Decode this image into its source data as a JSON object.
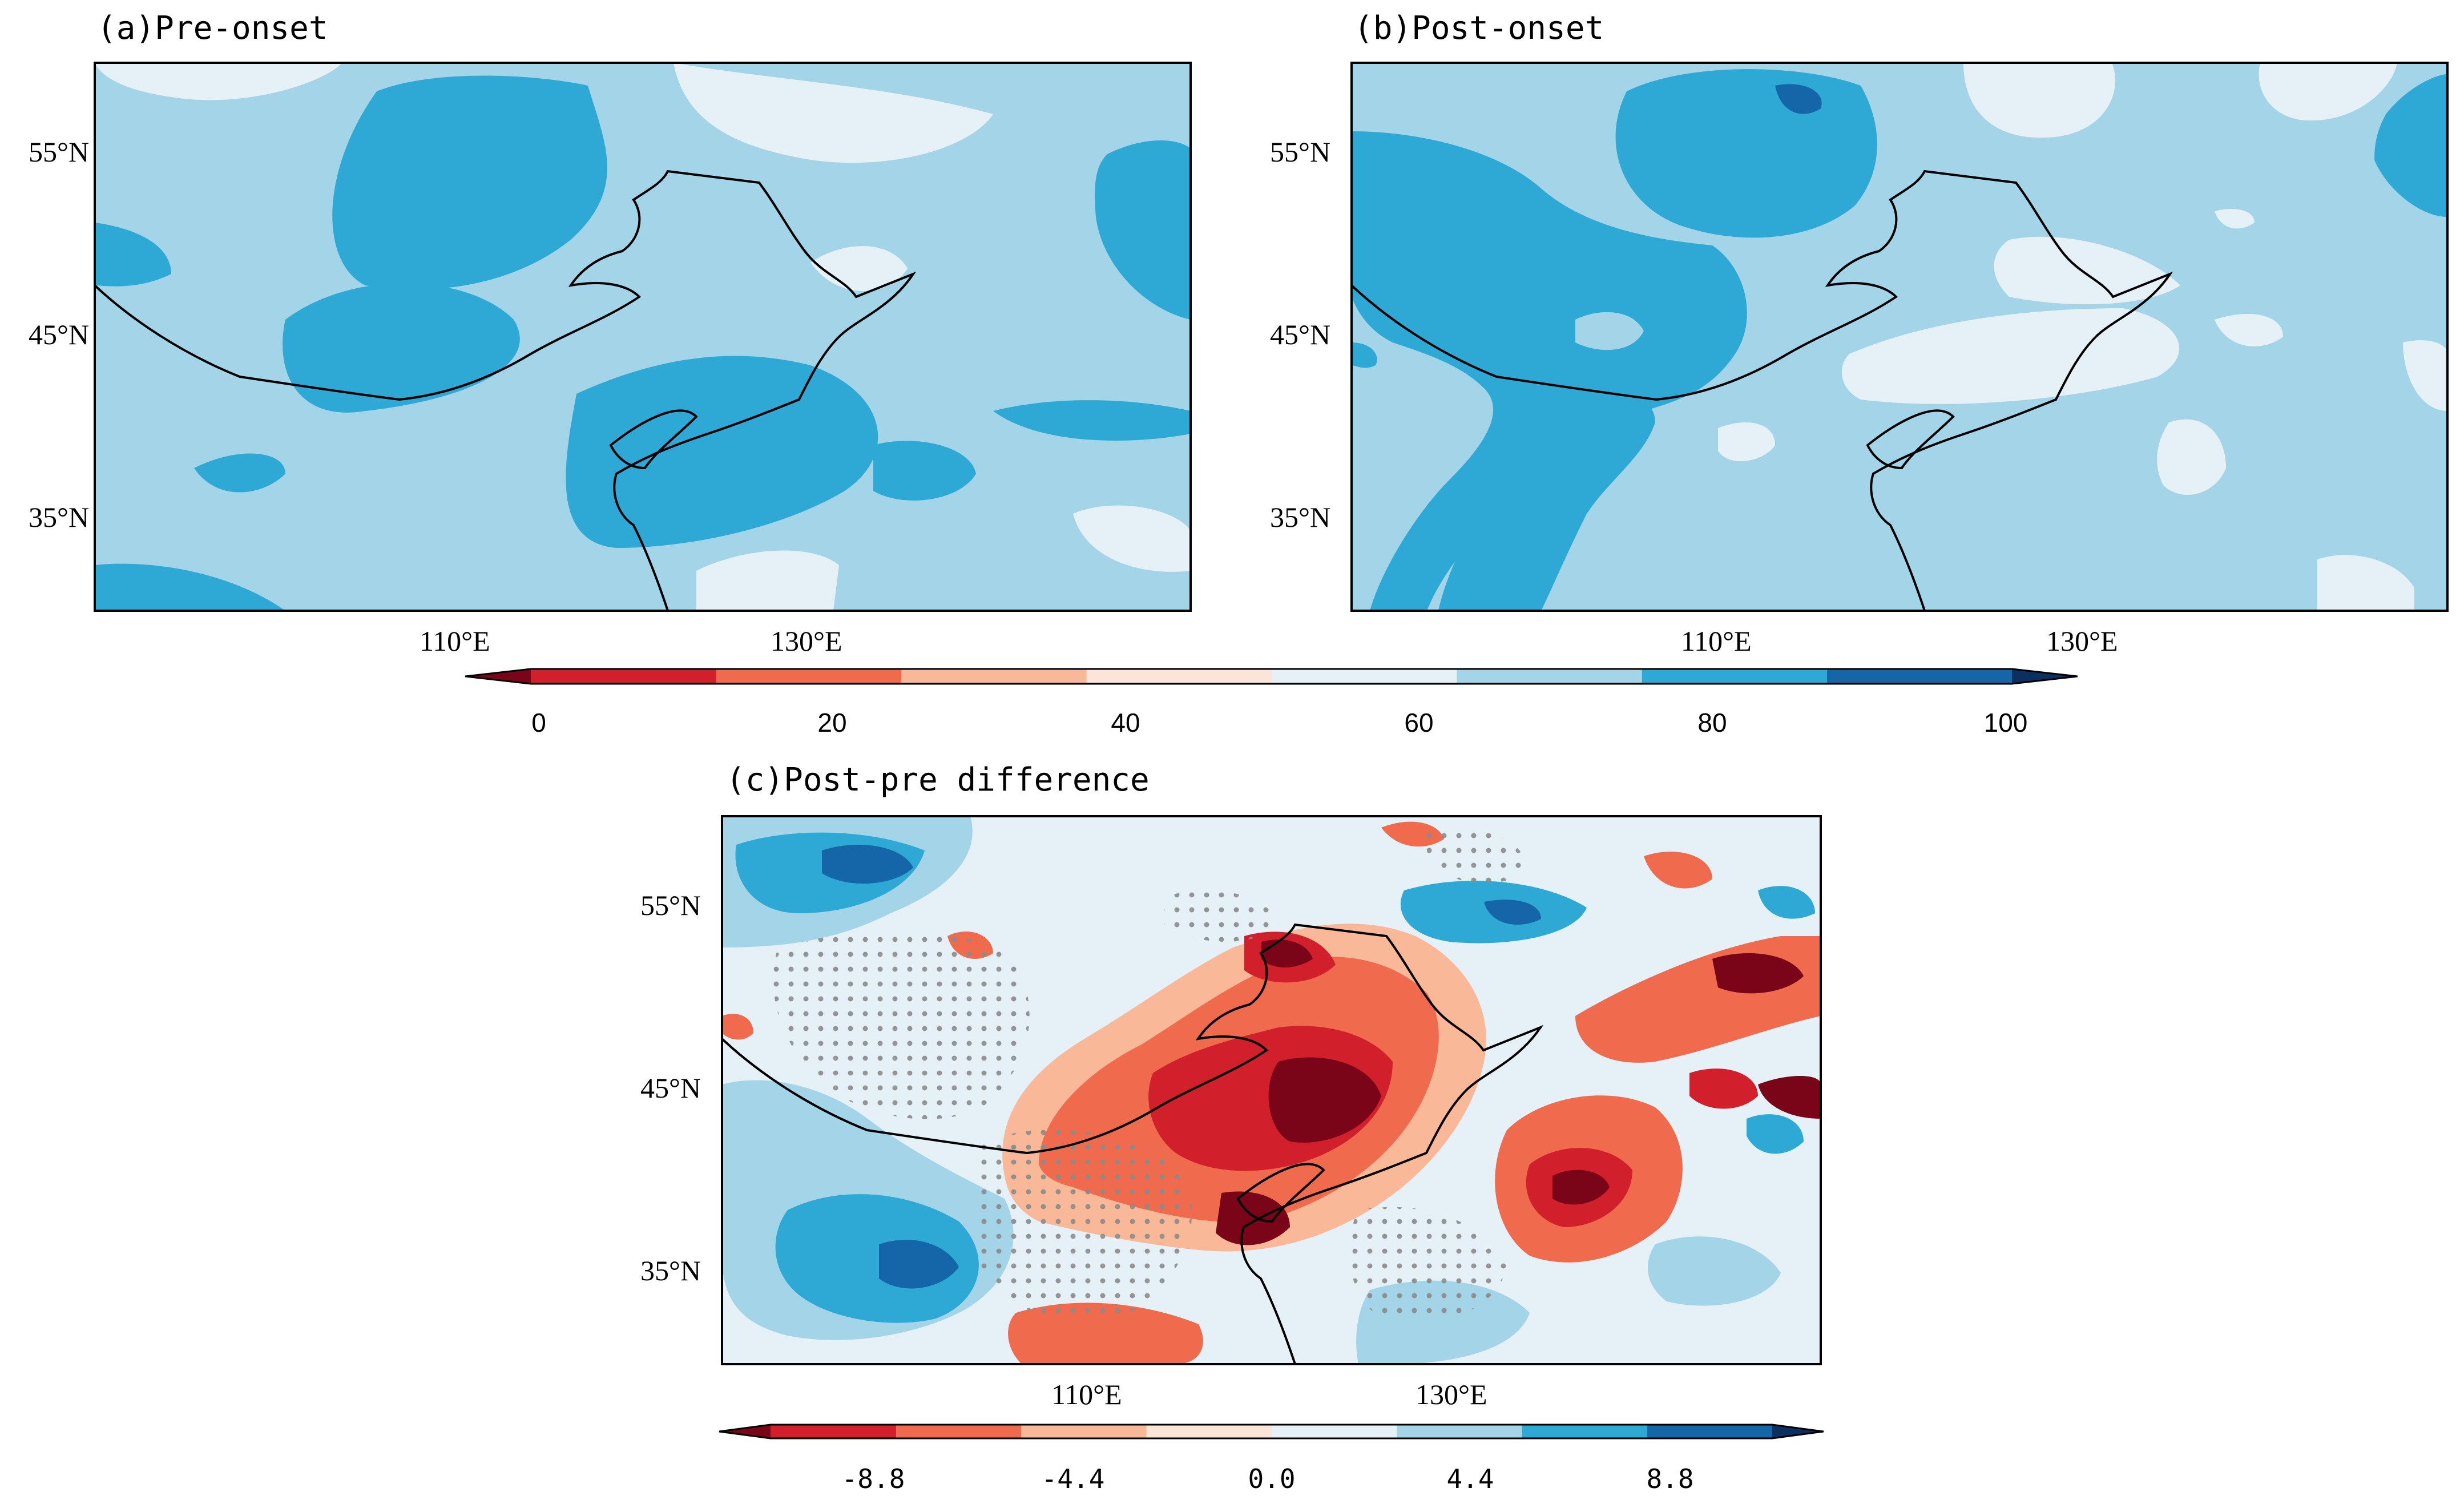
{
  "panels": {
    "a": {
      "title": "(a)Pre-onset"
    },
    "b": {
      "title": "(b)Post-onset"
    },
    "c": {
      "title": "(c)Post-pre difference"
    }
  },
  "axes": {
    "lat_labels": [
      "55°N",
      "45°N",
      "35°N"
    ],
    "lon_labels": [
      "110°E",
      "130°E"
    ]
  },
  "colorbar_top": {
    "ticks": [
      "0",
      "20",
      "40",
      "60",
      "80",
      "100"
    ],
    "colors": [
      "#7a0418",
      "#d11f2c",
      "#f06a4e",
      "#f9b999",
      "#fbe5d8",
      "#e6f1f7",
      "#a3d4e8",
      "#2ea8d4",
      "#1466a8",
      "#0a2f61"
    ]
  },
  "colorbar_bottom": {
    "ticks": [
      "-8.8",
      "-4.4",
      "0.0",
      "4.4",
      "8.8"
    ],
    "colors": [
      "#7a0418",
      "#d11f2c",
      "#f06a4e",
      "#f9b999",
      "#fbe5d8",
      "#e6f1f7",
      "#a3d4e8",
      "#2ea8d4",
      "#1466a8",
      "#0a2f61"
    ]
  },
  "field_colors": {
    "light": "#e6f1f7",
    "mid": "#a3d4e8",
    "dark": "#2ea8d4",
    "deep": "#1466a8",
    "pale_red": "#fbe5d8",
    "light_red": "#f9b999",
    "red": "#f06a4e",
    "dark_red": "#d11f2c",
    "deepest_red": "#7a0418",
    "stipple": "#8a8a8a"
  }
}
